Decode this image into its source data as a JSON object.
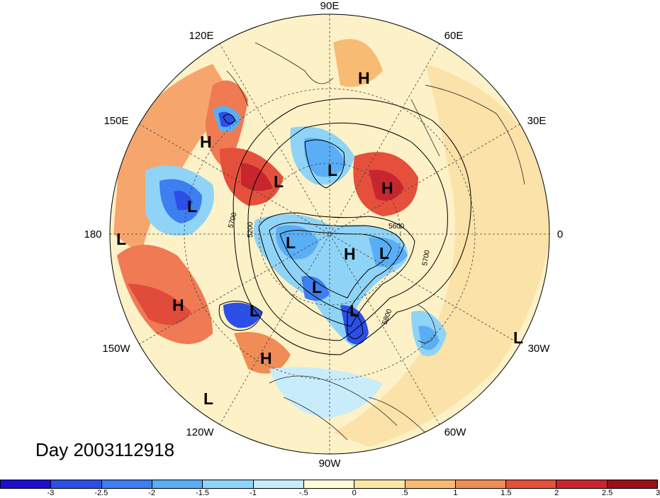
{
  "map": {
    "projection": "north polar stereographic",
    "fill_variable_colors": "blue = negative anomaly, red = positive anomaly",
    "longitude_labels": [
      "90E",
      "60E",
      "30E",
      "0",
      "30W",
      "60W",
      "90W",
      "120W",
      "150W",
      "180",
      "150E",
      "120E"
    ],
    "contour_labels": [
      "5700",
      "5200",
      "5600",
      "5700",
      "5800"
    ],
    "highs_lows": {
      "H": "H",
      "L": "L"
    }
  },
  "day_label": "Day 2003112918",
  "colorbar": {
    "colors": [
      "#1c0fd0",
      "#2c4fe6",
      "#3d7ef0",
      "#5aaef5",
      "#8fd4f7",
      "#c9ecfb",
      "#fffad8",
      "#fce6a6",
      "#f7bb73",
      "#f08c55",
      "#e4503c",
      "#c8262e",
      "#9b0e1a"
    ],
    "tick_labels": [
      "-3",
      "-2.5",
      "-2",
      "-1.5",
      "-1",
      "-.5",
      "0",
      ".5",
      "1",
      "1.5",
      "2",
      "2.5",
      "3"
    ]
  }
}
